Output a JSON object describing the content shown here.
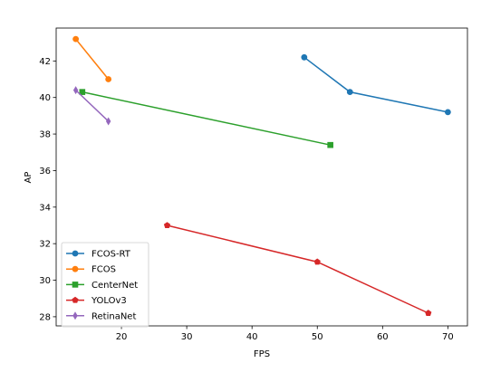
{
  "chart_data": {
    "type": "line",
    "title": "",
    "xlabel": "FPS",
    "ylabel": "AP",
    "xlim": [
      10,
      73
    ],
    "ylim": [
      27.5,
      43.8
    ],
    "xticks": [
      20,
      30,
      40,
      50,
      60,
      70
    ],
    "yticks": [
      28,
      30,
      32,
      34,
      36,
      38,
      40,
      42
    ],
    "grid": false,
    "legend_position": "lower-left",
    "series": [
      {
        "name": "FCOS-RT",
        "color": "#1f77b4",
        "marker": "circle",
        "x": [
          48,
          55,
          70
        ],
        "y": [
          42.2,
          40.3,
          39.2
        ]
      },
      {
        "name": "FCOS",
        "color": "#ff7f0e",
        "marker": "circle",
        "x": [
          13,
          18
        ],
        "y": [
          43.2,
          41.0
        ]
      },
      {
        "name": "CenterNet",
        "color": "#2ca02c",
        "marker": "square",
        "x": [
          14,
          52
        ],
        "y": [
          40.3,
          37.4
        ]
      },
      {
        "name": "YOLOv3",
        "color": "#d62728",
        "marker": "pentagon",
        "x": [
          27,
          50,
          67
        ],
        "y": [
          33.0,
          31.0,
          28.2
        ]
      },
      {
        "name": "RetinaNet",
        "color": "#9467bd",
        "marker": "thin-diamond",
        "x": [
          13,
          18
        ],
        "y": [
          40.4,
          38.7
        ]
      }
    ]
  }
}
